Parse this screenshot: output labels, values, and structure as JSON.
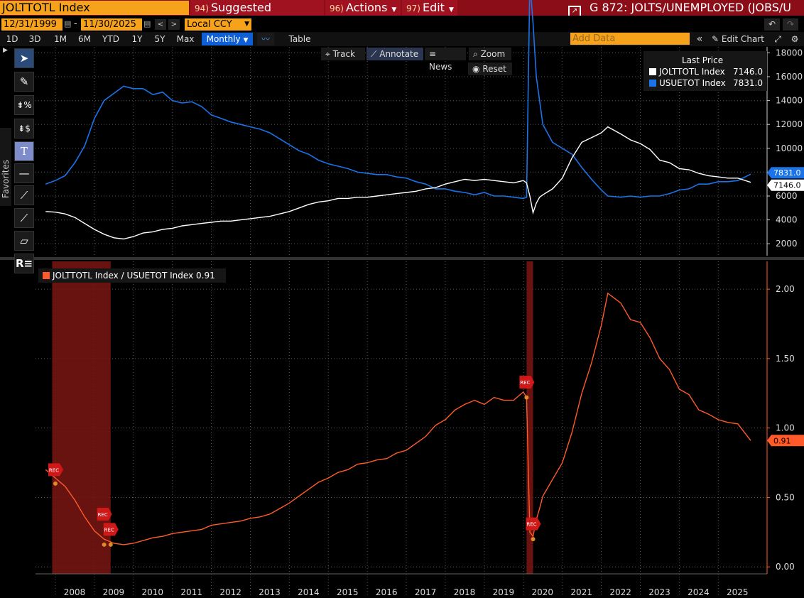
{
  "header": {
    "ticker": "JOLTTOTL Index",
    "menus": [
      {
        "num": "94)",
        "label": "Suggested Charts"
      },
      {
        "num": "96)",
        "label": "Actions"
      },
      {
        "num": "97)",
        "label": "Edit"
      }
    ],
    "chart_title": "G 872: JOLTS/UNEMPLOYED (JOBS/U"
  },
  "controls": {
    "start_date": "12/31/1999",
    "end_date": "11/30/2025",
    "currency": "Local CCY",
    "timeframes": [
      "1D",
      "3D",
      "1M",
      "6M",
      "YTD",
      "1Y",
      "5Y",
      "Max"
    ],
    "frequency": "Monthly",
    "table_label": "Table",
    "add_data_placeholder": "Add Data",
    "edit_chart": "Edit Chart"
  },
  "chart_tools": {
    "track": "Track",
    "annotate": "Annotate",
    "news": "News",
    "zoom": "Zoom",
    "reset": "Reset",
    "favorites": "Favorites"
  },
  "colors": {
    "jolts": "#ffffff",
    "unemployed": "#1a73e8",
    "ratio": "#ff5b2a",
    "recession": "#7a1612"
  },
  "chart_data": [
    {
      "type": "line",
      "legend_title": "Last Price",
      "x": [
        "2007-10",
        "2008-01",
        "2008-04",
        "2008-07",
        "2008-10",
        "2009-01",
        "2009-04",
        "2009-07",
        "2009-10",
        "2010-01",
        "2010-04",
        "2010-07",
        "2010-10",
        "2011-01",
        "2011-04",
        "2011-07",
        "2011-10",
        "2012-01",
        "2012-04",
        "2012-07",
        "2012-10",
        "2013-01",
        "2013-04",
        "2013-07",
        "2013-10",
        "2014-01",
        "2014-04",
        "2014-07",
        "2014-10",
        "2015-01",
        "2015-04",
        "2015-07",
        "2015-10",
        "2016-01",
        "2016-04",
        "2016-07",
        "2016-10",
        "2017-01",
        "2017-04",
        "2017-07",
        "2017-10",
        "2018-01",
        "2018-04",
        "2018-07",
        "2018-10",
        "2019-01",
        "2019-04",
        "2019-07",
        "2019-10",
        "2020-01",
        "2020-02",
        "2020-03",
        "2020-04",
        "2020-05",
        "2020-06",
        "2020-07",
        "2020-10",
        "2021-01",
        "2021-04",
        "2021-07",
        "2021-10",
        "2022-01",
        "2022-03",
        "2022-07",
        "2022-10",
        "2023-01",
        "2023-04",
        "2023-07",
        "2023-10",
        "2024-01",
        "2024-04",
        "2024-07",
        "2024-10",
        "2025-01",
        "2025-04",
        "2025-07",
        "2025-11"
      ],
      "series": [
        {
          "name": "JOLTTOTL Index",
          "last_value": "7146.0",
          "values": [
            4700,
            4650,
            4500,
            4200,
            3700,
            3200,
            2800,
            2500,
            2400,
            2600,
            2900,
            3000,
            3200,
            3300,
            3500,
            3600,
            3700,
            3800,
            3900,
            3900,
            4000,
            4100,
            4200,
            4300,
            4500,
            4700,
            5000,
            5300,
            5500,
            5600,
            5800,
            5800,
            5900,
            5900,
            6000,
            6100,
            6200,
            6300,
            6400,
            6600,
            6700,
            7000,
            7200,
            7400,
            7300,
            7400,
            7300,
            7200,
            7100,
            7300,
            7100,
            6000,
            4600,
            5400,
            5900,
            6100,
            6600,
            7500,
            9200,
            10500,
            10900,
            11300,
            11800,
            11200,
            10700,
            10400,
            9900,
            9000,
            8800,
            8300,
            8200,
            7900,
            7700,
            7600,
            7500,
            7500,
            7146
          ]
        },
        {
          "name": "USUETOT Index",
          "last_value": "7831.0",
          "values": [
            7000,
            7300,
            7700,
            8800,
            10200,
            12500,
            14000,
            14600,
            15200,
            15000,
            15000,
            14500,
            14700,
            14000,
            13800,
            13900,
            13500,
            12800,
            12500,
            12200,
            12000,
            11800,
            11600,
            11300,
            10800,
            10300,
            9800,
            9500,
            9000,
            8700,
            8500,
            8300,
            8000,
            7900,
            7800,
            7800,
            7600,
            7500,
            7200,
            7000,
            6600,
            6600,
            6400,
            6300,
            6100,
            6300,
            6000,
            6000,
            5900,
            5800,
            5900,
            24000,
            20500,
            16000,
            14000,
            12000,
            10500,
            10000,
            9500,
            8400,
            7400,
            6500,
            6000,
            5900,
            6000,
            5900,
            6000,
            6000,
            6200,
            6500,
            6600,
            7000,
            7000,
            7200,
            7200,
            7300,
            7831
          ]
        }
      ],
      "ylim": [
        1000,
        18500
      ],
      "yticks": [
        2000,
        4000,
        6000,
        8000,
        10000,
        12000,
        14000,
        16000,
        18000
      ]
    },
    {
      "type": "line",
      "series": [
        {
          "name": "JOLTTOTL Index / USUETOT Index",
          "last_value": "0.91",
          "values": [
            0.7,
            0.64,
            0.58,
            0.48,
            0.36,
            0.26,
            0.2,
            0.17,
            0.16,
            0.17,
            0.19,
            0.21,
            0.22,
            0.24,
            0.25,
            0.26,
            0.27,
            0.3,
            0.31,
            0.32,
            0.33,
            0.35,
            0.36,
            0.38,
            0.42,
            0.46,
            0.51,
            0.56,
            0.61,
            0.64,
            0.68,
            0.7,
            0.74,
            0.75,
            0.77,
            0.78,
            0.82,
            0.84,
            0.89,
            0.94,
            1.02,
            1.06,
            1.13,
            1.17,
            1.2,
            1.17,
            1.22,
            1.2,
            1.2,
            1.26,
            1.22,
            0.25,
            0.22,
            0.34,
            0.42,
            0.51,
            0.63,
            0.75,
            0.97,
            1.25,
            1.47,
            1.74,
            1.97,
            1.9,
            1.78,
            1.76,
            1.65,
            1.5,
            1.42,
            1.28,
            1.24,
            1.13,
            1.1,
            1.06,
            1.04,
            1.03,
            0.91
          ]
        }
      ],
      "ylim": [
        -0.05,
        2.2
      ],
      "yticks": [
        "0.00",
        "0.50",
        "1.00",
        "1.50",
        "2.00"
      ],
      "recessions": [
        [
          "2007-12",
          "2009-06"
        ],
        [
          "2020-02",
          "2020-04"
        ]
      ],
      "rec_label": "REC"
    }
  ],
  "x_axis": {
    "year_labels": [
      "2008",
      "2009",
      "2010",
      "2011",
      "2012",
      "2013",
      "2014",
      "2015",
      "2016",
      "2017",
      "2018",
      "2019",
      "2020",
      "2021",
      "2022",
      "2023",
      "2024",
      "2025"
    ]
  }
}
